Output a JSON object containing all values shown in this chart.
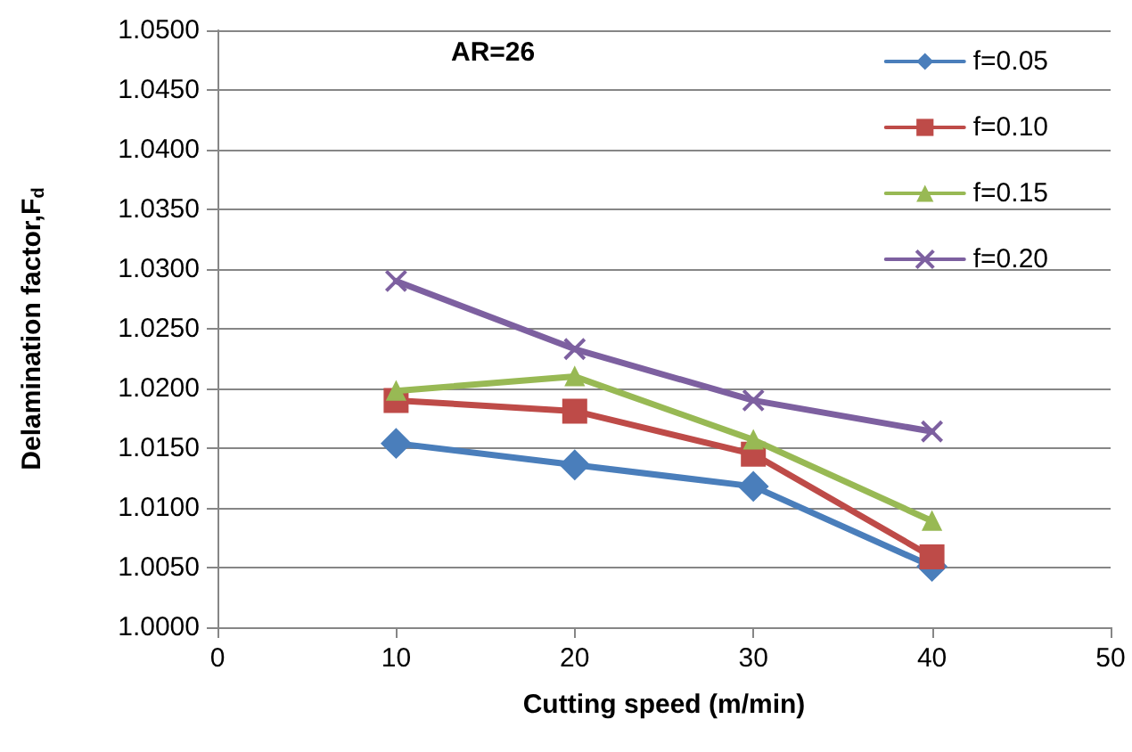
{
  "chart_data": {
    "type": "line",
    "xlabel": "Cutting speed (m/min)",
    "ylabel": "Delamination factor,F$_{d}$",
    "annotations": [
      "AR=26"
    ],
    "x": [
      10,
      20,
      30,
      40
    ],
    "series": [
      {
        "name": "f=0.05",
        "color": "#4a7ebb",
        "marker": "diamond",
        "values": [
          1.0154,
          1.0136,
          1.0118,
          1.0051
        ]
      },
      {
        "name": "f=0.10",
        "color": "#be4b48",
        "marker": "square",
        "values": [
          1.019,
          1.0181,
          1.0145,
          1.0059
        ]
      },
      {
        "name": "f=0.15",
        "color": "#98b954",
        "marker": "triangle",
        "values": [
          1.0198,
          1.021,
          1.0157,
          1.0089
        ]
      },
      {
        "name": "f=0.20",
        "color": "#7d60a0",
        "marker": "cross",
        "values": [
          1.029,
          1.0233,
          1.019,
          1.0164
        ]
      }
    ],
    "xlim": [
      0,
      50
    ],
    "xticks": [
      0,
      10,
      20,
      30,
      40,
      50
    ],
    "ylim": [
      1.0,
      1.05
    ],
    "yticks": [
      {
        "value": 1.0,
        "label": "1.0000"
      },
      {
        "value": 1.005,
        "label": "1.0050"
      },
      {
        "value": 1.01,
        "label": "1.0100"
      },
      {
        "value": 1.015,
        "label": "1.0150"
      },
      {
        "value": 1.02,
        "label": "1.0200"
      },
      {
        "value": 1.025,
        "label": "1.0250"
      },
      {
        "value": 1.03,
        "label": "1.0300"
      },
      {
        "value": 1.035,
        "label": "1.0350"
      },
      {
        "value": 1.04,
        "label": "1.0400"
      },
      {
        "value": 1.045,
        "label": "1.0450"
      },
      {
        "value": 1.05,
        "label": "1.0500"
      }
    ],
    "grid": "y",
    "legend": "top right",
    "line_style": "solid"
  }
}
